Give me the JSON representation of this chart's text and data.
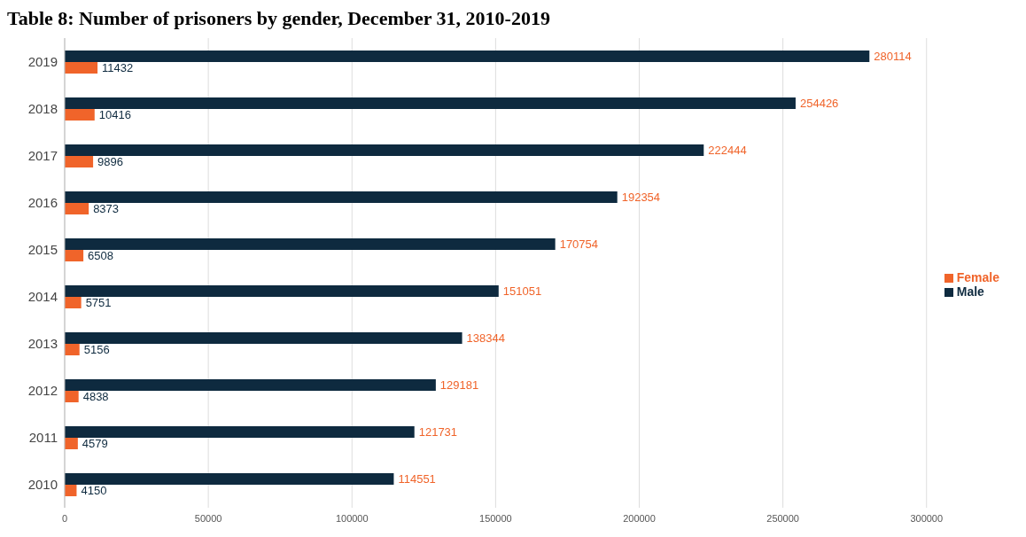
{
  "chart_data": {
    "type": "bar",
    "orientation": "horizontal",
    "title": "Table 8: Number of prisoners by gender, December 31, 2010-2019",
    "categories": [
      "2019",
      "2018",
      "2017",
      "2016",
      "2015",
      "2014",
      "2013",
      "2012",
      "2011",
      "2010"
    ],
    "series": [
      {
        "name": "Male",
        "color": "#0e2a3f",
        "values": [
          280114,
          254426,
          222444,
          192354,
          170754,
          151051,
          138344,
          129181,
          121731,
          114551
        ]
      },
      {
        "name": "Female",
        "color": "#f0642a",
        "values": [
          11432,
          10416,
          9896,
          8373,
          6508,
          5751,
          5156,
          4838,
          4579,
          4150
        ]
      }
    ],
    "xlim": [
      0,
      300000
    ],
    "xticks": [
      0,
      50000,
      100000,
      150000,
      200000,
      250000,
      300000
    ],
    "grid": "x",
    "legend": "right",
    "data_labels": true
  }
}
